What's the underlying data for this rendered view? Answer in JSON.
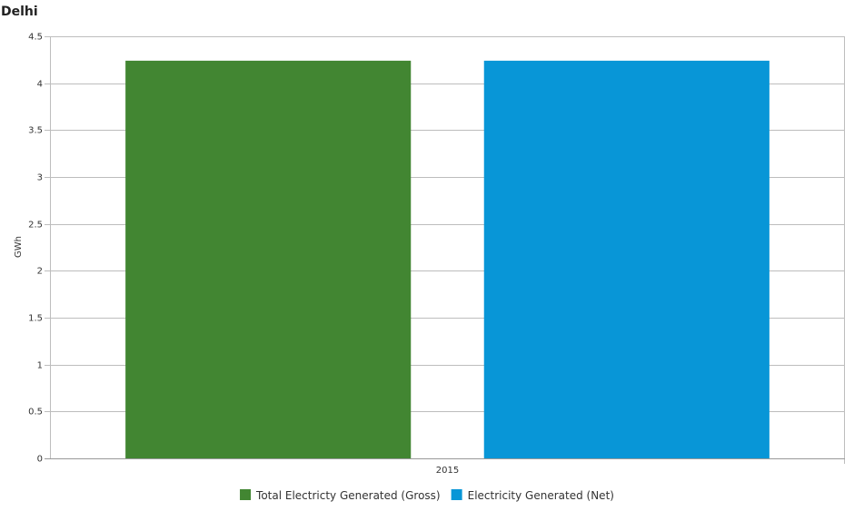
{
  "chart_data": {
    "type": "bar",
    "title": "Delhi",
    "categories": [
      "2015"
    ],
    "series": [
      {
        "name": "Total Electricty Generated (Gross)",
        "values": [
          4.24
        ],
        "color": "#428632"
      },
      {
        "name": "Electricity Generated (Net)",
        "values": [
          4.24
        ],
        "color": "#0896d7"
      }
    ],
    "xlabel": "",
    "ylabel": "GWh",
    "ylim": [
      0,
      4.5
    ],
    "yticks": [
      "0",
      "0.5",
      "1",
      "1.5",
      "2",
      "2.5",
      "3",
      "3.5",
      "4",
      "4.5"
    ],
    "grid": true,
    "legend_position": "bottom-center"
  }
}
